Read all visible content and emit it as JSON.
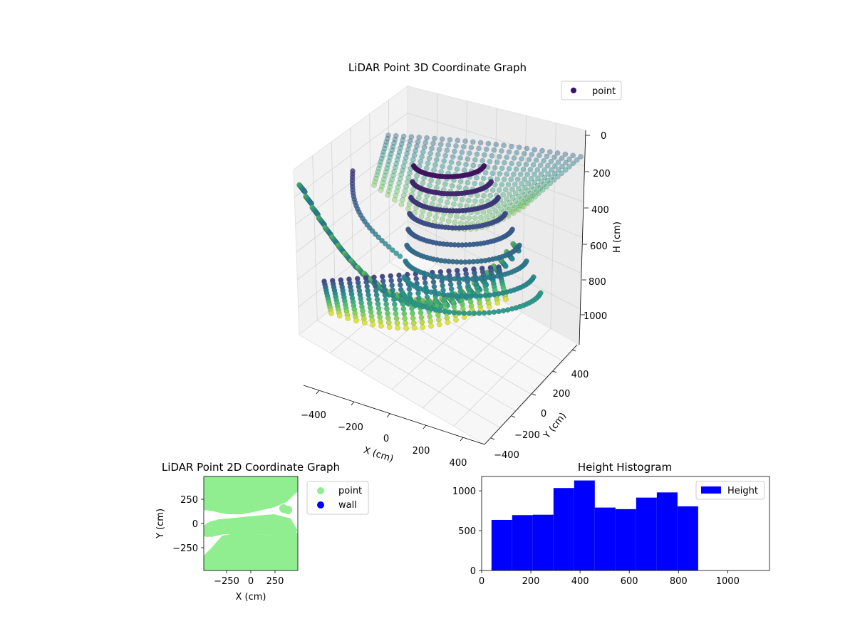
{
  "chart_data": [
    {
      "type": "scatter",
      "chart_id": "3d",
      "title": "LiDAR Point 3D Coordinate Graph",
      "xlabel": "X (cm)",
      "ylabel": "Y (cm)",
      "zlabel": "H (cm)",
      "xlim": [
        -450,
        450
      ],
      "ylim": [
        -450,
        450
      ],
      "zlim": [
        1150,
        -30
      ],
      "xticks": [
        "−400",
        "−200",
        "0",
        "200",
        "400"
      ],
      "yticks": [
        "−400",
        "−200",
        "0",
        "200",
        "400"
      ],
      "zticks": [
        "0",
        "200",
        "400",
        "600",
        "800",
        "1000"
      ],
      "grid": true,
      "legend": {
        "position": "top-right",
        "entries": [
          {
            "label": "point",
            "color": "#3b0f70"
          }
        ]
      },
      "colormap": "viridis",
      "series": [
        {
          "name": "point",
          "color": "#440154"
        }
      ]
    },
    {
      "type": "scatter",
      "chart_id": "2d",
      "title": "LiDAR Point 2D Coordinate Graph",
      "xlabel": "X (cm)",
      "ylabel": "Y (cm)",
      "xlim": [
        -480,
        480
      ],
      "ylim": [
        -480,
        480
      ],
      "xticks": [
        -250,
        0,
        250
      ],
      "yticks": [
        -250,
        0,
        250
      ],
      "xtick_labels": [
        "−250",
        "0",
        "250"
      ],
      "ytick_labels": [
        "−250",
        "0",
        "250"
      ],
      "legend": {
        "position": "outside-right",
        "entries": [
          {
            "label": "point",
            "color": "#90ee90"
          },
          {
            "label": "wall",
            "color": "#0000ff"
          }
        ]
      },
      "series": [
        {
          "name": "point",
          "color": "#90ee90"
        },
        {
          "name": "wall",
          "color": "#0000ff"
        }
      ]
    },
    {
      "type": "bar",
      "chart_id": "hist",
      "title": "Height Histogram",
      "xlabel": "",
      "ylabel": "",
      "xlim": [
        0,
        1170
      ],
      "ylim": [
        0,
        1180
      ],
      "xticks": [
        0,
        200,
        400,
        600,
        800,
        1000
      ],
      "yticks": [
        0,
        500,
        1000
      ],
      "bin_edges": [
        40,
        124,
        208,
        292,
        376,
        460,
        544,
        628,
        712,
        796,
        880
      ],
      "values": [
        635,
        695,
        700,
        1035,
        1130,
        790,
        770,
        915,
        980,
        805
      ],
      "legend": {
        "position": "top-right",
        "entries": [
          {
            "label": "Height",
            "color": "#0000ff"
          }
        ]
      },
      "series": [
        {
          "name": "Height",
          "color": "#0000ff"
        }
      ]
    }
  ]
}
